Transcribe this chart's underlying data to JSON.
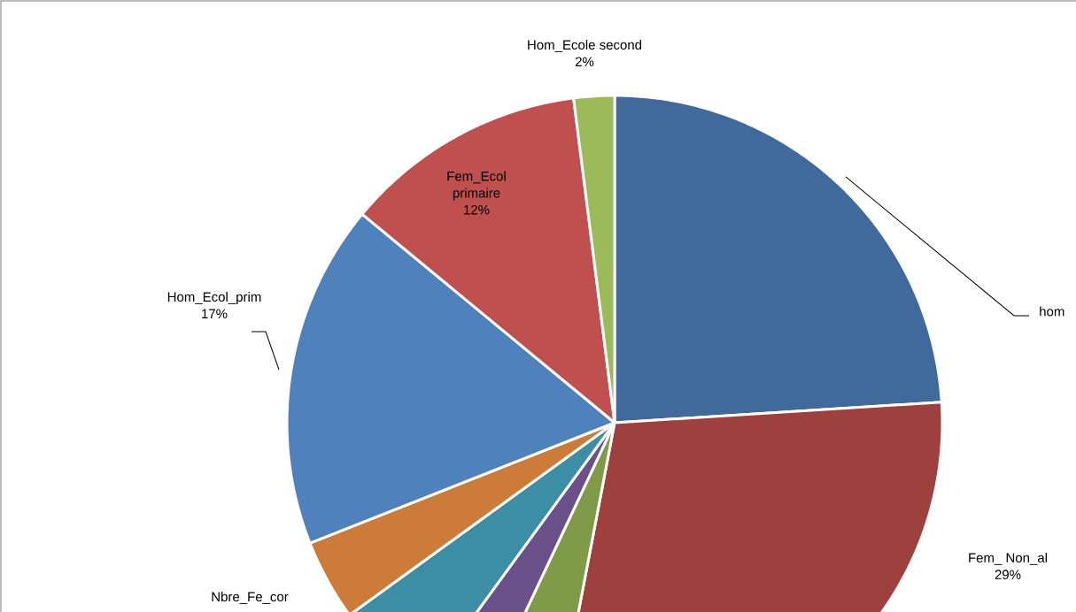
{
  "chart_data": {
    "type": "pie",
    "categories": [
      "hom",
      "Fem_ Non_al",
      null,
      null,
      null,
      "Nbre_Fe_cor",
      "Hom_Ecol_prim",
      "Fem_Ecol primaire",
      "Hom_Ecole second"
    ],
    "values": [
      24,
      29,
      4,
      3,
      5,
      4,
      17,
      12,
      2
    ],
    "value_labels": [
      null,
      "29%",
      null,
      null,
      null,
      null,
      "17%",
      "12%",
      "2%"
    ],
    "colors": [
      "#416a9c",
      "#9e413e",
      "#7f9b48",
      "#6a5189",
      "#3b8ea4",
      "#cc7b38",
      "#4f81bd",
      "#c0504d",
      "#9bbb59"
    ]
  }
}
